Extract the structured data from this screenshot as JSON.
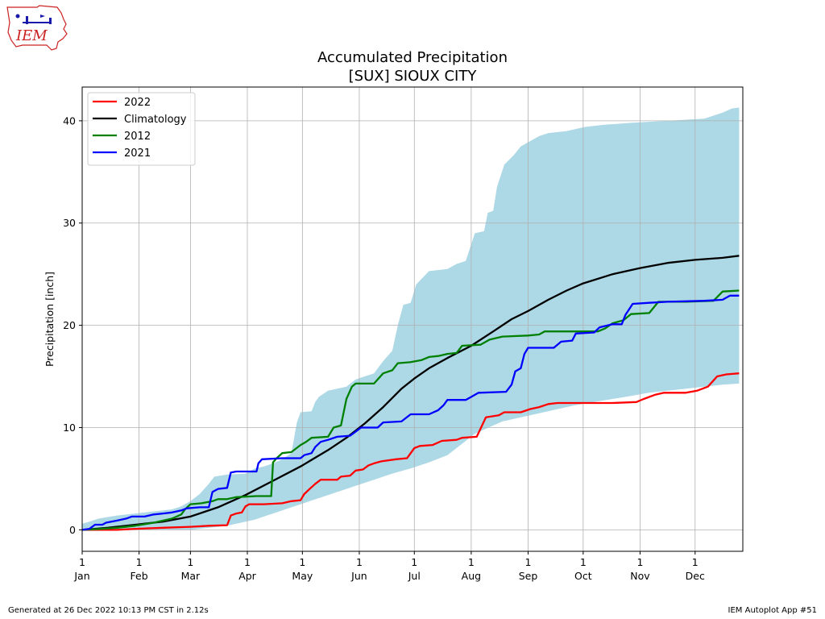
{
  "logo": {
    "text": "IEM"
  },
  "footer": {
    "generated": "Generated at 26 Dec 2022 10:13 PM CST in 2.12s",
    "app": "IEM Autoplot App #51"
  },
  "colors": {
    "range_band": "#add8e6",
    "grid": "#b0b0b0",
    "logo_red": "#cc2222",
    "logo_blue": "#1a1aaa"
  },
  "chart_data": {
    "type": "line",
    "title": "Accumulated Precipitation",
    "subtitle": "[SUX] SIOUX CITY",
    "ylabel": "Precipitation [inch]",
    "xlabel": "",
    "x_unit": "day of year",
    "xlim": [
      1,
      361
    ],
    "ylim": [
      -2.1,
      43.3
    ],
    "yticks": [
      0,
      10,
      20,
      30,
      40
    ],
    "xticks": [
      {
        "day": 1,
        "top": "1",
        "bottom": "Jan"
      },
      {
        "day": 32,
        "top": "1",
        "bottom": "Feb"
      },
      {
        "day": 60,
        "top": "1",
        "bottom": "Mar"
      },
      {
        "day": 91,
        "top": "1",
        "bottom": "Apr"
      },
      {
        "day": 121,
        "top": "1",
        "bottom": "May"
      },
      {
        "day": 152,
        "top": "1",
        "bottom": "Jun"
      },
      {
        "day": 182,
        "top": "1",
        "bottom": "Jul"
      },
      {
        "day": 213,
        "top": "1",
        "bottom": "Aug"
      },
      {
        "day": 244,
        "top": "1",
        "bottom": "Sep"
      },
      {
        "day": 274,
        "top": "1",
        "bottom": "Oct"
      },
      {
        "day": 305,
        "top": "1",
        "bottom": "Nov"
      },
      {
        "day": 335,
        "top": "1",
        "bottom": "Dec"
      }
    ],
    "grid": true,
    "legend_position": "top-left",
    "range_band": {
      "upper": [
        [
          1,
          0.6
        ],
        [
          5,
          0.8
        ],
        [
          10,
          1.1
        ],
        [
          20,
          1.4
        ],
        [
          30,
          1.6
        ],
        [
          40,
          1.8
        ],
        [
          50,
          2.0
        ],
        [
          55,
          2.3
        ],
        [
          60,
          2.8
        ],
        [
          65,
          3.5
        ],
        [
          70,
          4.5
        ],
        [
          73,
          5.2
        ],
        [
          80,
          5.4
        ],
        [
          90,
          5.5
        ],
        [
          95,
          6.0
        ],
        [
          100,
          6.2
        ],
        [
          105,
          6.5
        ],
        [
          110,
          6.9
        ],
        [
          115,
          7.5
        ],
        [
          118,
          10.5
        ],
        [
          120,
          11.5
        ],
        [
          126,
          11.6
        ],
        [
          128,
          12.5
        ],
        [
          130,
          13.0
        ],
        [
          135,
          13.6
        ],
        [
          140,
          13.8
        ],
        [
          145,
          14.0
        ],
        [
          150,
          14.7
        ],
        [
          155,
          15.0
        ],
        [
          160,
          15.3
        ],
        [
          165,
          16.5
        ],
        [
          170,
          17.5
        ],
        [
          173,
          20.0
        ],
        [
          176,
          22.0
        ],
        [
          180,
          22.2
        ],
        [
          183,
          24.0
        ],
        [
          190,
          25.3
        ],
        [
          200,
          25.5
        ],
        [
          205,
          26.0
        ],
        [
          210,
          26.3
        ],
        [
          215,
          29.0
        ],
        [
          220,
          29.2
        ],
        [
          222,
          31.0
        ],
        [
          225,
          31.2
        ],
        [
          227,
          33.5
        ],
        [
          231,
          35.7
        ],
        [
          236,
          36.6
        ],
        [
          240,
          37.5
        ],
        [
          245,
          38.0
        ],
        [
          250,
          38.5
        ],
        [
          255,
          38.8
        ],
        [
          265,
          39.0
        ],
        [
          275,
          39.4
        ],
        [
          285,
          39.6
        ],
        [
          300,
          39.8
        ],
        [
          320,
          40.0
        ],
        [
          340,
          40.2
        ],
        [
          350,
          40.8
        ],
        [
          355,
          41.2
        ],
        [
          359,
          41.3
        ]
      ],
      "lower": [
        [
          1,
          0.0
        ],
        [
          60,
          0.0
        ],
        [
          65,
          0.1
        ],
        [
          70,
          0.2
        ],
        [
          75,
          0.3
        ],
        [
          80,
          0.4
        ],
        [
          85,
          0.6
        ],
        [
          90,
          0.8
        ],
        [
          95,
          1.0
        ],
        [
          100,
          1.3
        ],
        [
          105,
          1.6
        ],
        [
          110,
          1.9
        ],
        [
          115,
          2.2
        ],
        [
          120,
          2.5
        ],
        [
          125,
          2.8
        ],
        [
          130,
          3.1
        ],
        [
          135,
          3.4
        ],
        [
          140,
          3.7
        ],
        [
          145,
          4.0
        ],
        [
          150,
          4.3
        ],
        [
          155,
          4.6
        ],
        [
          160,
          4.9
        ],
        [
          165,
          5.2
        ],
        [
          170,
          5.5
        ],
        [
          180,
          6.0
        ],
        [
          190,
          6.6
        ],
        [
          200,
          7.3
        ],
        [
          205,
          8.0
        ],
        [
          210,
          8.7
        ],
        [
          215,
          9.4
        ],
        [
          220,
          9.8
        ],
        [
          225,
          10.2
        ],
        [
          230,
          10.6
        ],
        [
          240,
          11.0
        ],
        [
          250,
          11.4
        ],
        [
          260,
          11.8
        ],
        [
          270,
          12.2
        ],
        [
          280,
          12.5
        ],
        [
          290,
          12.8
        ],
        [
          300,
          13.1
        ],
        [
          310,
          13.4
        ],
        [
          320,
          13.6
        ],
        [
          330,
          13.8
        ],
        [
          340,
          14.0
        ],
        [
          350,
          14.2
        ],
        [
          359,
          14.3
        ]
      ]
    },
    "series": [
      {
        "name": "2022",
        "color": "#ff0000",
        "points": [
          [
            1,
            0.0
          ],
          [
            20,
            0.0
          ],
          [
            30,
            0.1
          ],
          [
            45,
            0.2
          ],
          [
            60,
            0.3
          ],
          [
            70,
            0.4
          ],
          [
            80,
            0.45
          ],
          [
            82,
            1.4
          ],
          [
            85,
            1.6
          ],
          [
            88,
            1.7
          ],
          [
            90,
            2.3
          ],
          [
            92,
            2.5
          ],
          [
            100,
            2.5
          ],
          [
            110,
            2.6
          ],
          [
            115,
            2.8
          ],
          [
            120,
            2.9
          ],
          [
            122,
            3.5
          ],
          [
            125,
            4.0
          ],
          [
            128,
            4.5
          ],
          [
            131,
            4.9
          ],
          [
            140,
            4.9
          ],
          [
            142,
            5.2
          ],
          [
            147,
            5.3
          ],
          [
            150,
            5.8
          ],
          [
            154,
            5.9
          ],
          [
            157,
            6.3
          ],
          [
            160,
            6.5
          ],
          [
            164,
            6.7
          ],
          [
            172,
            6.9
          ],
          [
            178,
            7.0
          ],
          [
            182,
            8.0
          ],
          [
            185,
            8.2
          ],
          [
            192,
            8.3
          ],
          [
            197,
            8.7
          ],
          [
            205,
            8.8
          ],
          [
            208,
            9.0
          ],
          [
            216,
            9.1
          ],
          [
            221,
            11.0
          ],
          [
            228,
            11.2
          ],
          [
            231,
            11.5
          ],
          [
            240,
            11.5
          ],
          [
            245,
            11.8
          ],
          [
            250,
            12.0
          ],
          [
            255,
            12.3
          ],
          [
            260,
            12.4
          ],
          [
            270,
            12.4
          ],
          [
            290,
            12.4
          ],
          [
            303,
            12.5
          ],
          [
            307,
            12.8
          ],
          [
            313,
            13.2
          ],
          [
            318,
            13.4
          ],
          [
            330,
            13.4
          ],
          [
            336,
            13.6
          ],
          [
            342,
            14.0
          ],
          [
            347,
            15.0
          ],
          [
            352,
            15.2
          ],
          [
            359,
            15.3
          ]
        ]
      },
      {
        "name": "Climatology",
        "color": "#000000",
        "points": [
          [
            1,
            0.0
          ],
          [
            15,
            0.2
          ],
          [
            30,
            0.5
          ],
          [
            45,
            0.8
          ],
          [
            60,
            1.3
          ],
          [
            75,
            2.2
          ],
          [
            90,
            3.4
          ],
          [
            105,
            4.8
          ],
          [
            120,
            6.2
          ],
          [
            135,
            7.8
          ],
          [
            145,
            9.0
          ],
          [
            155,
            10.4
          ],
          [
            165,
            12.0
          ],
          [
            175,
            13.8
          ],
          [
            182,
            14.8
          ],
          [
            190,
            15.8
          ],
          [
            200,
            16.8
          ],
          [
            213,
            18.0
          ],
          [
            225,
            19.4
          ],
          [
            235,
            20.6
          ],
          [
            244,
            21.4
          ],
          [
            255,
            22.5
          ],
          [
            265,
            23.4
          ],
          [
            274,
            24.1
          ],
          [
            290,
            25.0
          ],
          [
            305,
            25.6
          ],
          [
            320,
            26.1
          ],
          [
            335,
            26.4
          ],
          [
            350,
            26.6
          ],
          [
            359,
            26.8
          ]
        ]
      },
      {
        "name": "2012",
        "color": "#008000",
        "points": [
          [
            1,
            0.0
          ],
          [
            12,
            0.1
          ],
          [
            20,
            0.2
          ],
          [
            30,
            0.4
          ],
          [
            40,
            0.7
          ],
          [
            50,
            1.1
          ],
          [
            55,
            1.5
          ],
          [
            57,
            2.0
          ],
          [
            60,
            2.5
          ],
          [
            66,
            2.6
          ],
          [
            72,
            2.8
          ],
          [
            75,
            3.0
          ],
          [
            80,
            3.0
          ],
          [
            85,
            3.2
          ],
          [
            96,
            3.3
          ],
          [
            104,
            3.3
          ],
          [
            105,
            6.6
          ],
          [
            107,
            7.0
          ],
          [
            110,
            7.5
          ],
          [
            115,
            7.6
          ],
          [
            120,
            8.3
          ],
          [
            123,
            8.6
          ],
          [
            126,
            9.0
          ],
          [
            135,
            9.1
          ],
          [
            138,
            10.0
          ],
          [
            142,
            10.2
          ],
          [
            145,
            12.8
          ],
          [
            148,
            14.0
          ],
          [
            150,
            14.3
          ],
          [
            160,
            14.3
          ],
          [
            165,
            15.3
          ],
          [
            170,
            15.6
          ],
          [
            173,
            16.3
          ],
          [
            180,
            16.4
          ],
          [
            186,
            16.6
          ],
          [
            190,
            16.9
          ],
          [
            195,
            17.0
          ],
          [
            200,
            17.2
          ],
          [
            205,
            17.3
          ],
          [
            208,
            18.0
          ],
          [
            218,
            18.1
          ],
          [
            223,
            18.6
          ],
          [
            230,
            18.9
          ],
          [
            244,
            19.0
          ],
          [
            250,
            19.1
          ],
          [
            253,
            19.4
          ],
          [
            265,
            19.4
          ],
          [
            282,
            19.4
          ],
          [
            286,
            19.7
          ],
          [
            290,
            20.2
          ],
          [
            296,
            20.5
          ],
          [
            300,
            21.1
          ],
          [
            310,
            21.2
          ],
          [
            315,
            22.3
          ],
          [
            330,
            22.3
          ],
          [
            345,
            22.4
          ],
          [
            350,
            23.3
          ],
          [
            359,
            23.4
          ]
        ]
      },
      {
        "name": "2021",
        "color": "#0000ff",
        "points": [
          [
            1,
            0.0
          ],
          [
            5,
            0.1
          ],
          [
            8,
            0.5
          ],
          [
            12,
            0.5
          ],
          [
            14,
            0.7
          ],
          [
            20,
            0.9
          ],
          [
            25,
            1.1
          ],
          [
            28,
            1.3
          ],
          [
            35,
            1.3
          ],
          [
            40,
            1.5
          ],
          [
            45,
            1.6
          ],
          [
            50,
            1.7
          ],
          [
            55,
            1.9
          ],
          [
            58,
            2.1
          ],
          [
            65,
            2.2
          ],
          [
            70,
            2.2
          ],
          [
            72,
            3.7
          ],
          [
            75,
            4.0
          ],
          [
            80,
            4.1
          ],
          [
            82,
            5.6
          ],
          [
            85,
            5.7
          ],
          [
            96,
            5.7
          ],
          [
            97,
            6.5
          ],
          [
            99,
            6.9
          ],
          [
            110,
            7.0
          ],
          [
            120,
            7.0
          ],
          [
            122,
            7.3
          ],
          [
            126,
            7.5
          ],
          [
            128,
            8.1
          ],
          [
            131,
            8.6
          ],
          [
            135,
            8.8
          ],
          [
            140,
            9.1
          ],
          [
            147,
            9.2
          ],
          [
            150,
            9.6
          ],
          [
            153,
            10.0
          ],
          [
            162,
            10.0
          ],
          [
            165,
            10.5
          ],
          [
            175,
            10.6
          ],
          [
            180,
            11.3
          ],
          [
            190,
            11.3
          ],
          [
            195,
            11.7
          ],
          [
            198,
            12.2
          ],
          [
            200,
            12.7
          ],
          [
            210,
            12.7
          ],
          [
            217,
            13.4
          ],
          [
            232,
            13.5
          ],
          [
            235,
            14.2
          ],
          [
            237,
            15.5
          ],
          [
            240,
            15.8
          ],
          [
            242,
            17.2
          ],
          [
            244,
            17.8
          ],
          [
            258,
            17.8
          ],
          [
            262,
            18.4
          ],
          [
            268,
            18.5
          ],
          [
            270,
            19.2
          ],
          [
            280,
            19.3
          ],
          [
            283,
            19.8
          ],
          [
            290,
            20.1
          ],
          [
            295,
            20.1
          ],
          [
            297,
            21.0
          ],
          [
            301,
            22.1
          ],
          [
            310,
            22.2
          ],
          [
            320,
            22.3
          ],
          [
            340,
            22.4
          ],
          [
            350,
            22.5
          ],
          [
            354,
            22.9
          ],
          [
            359,
            22.9
          ]
        ]
      }
    ]
  }
}
